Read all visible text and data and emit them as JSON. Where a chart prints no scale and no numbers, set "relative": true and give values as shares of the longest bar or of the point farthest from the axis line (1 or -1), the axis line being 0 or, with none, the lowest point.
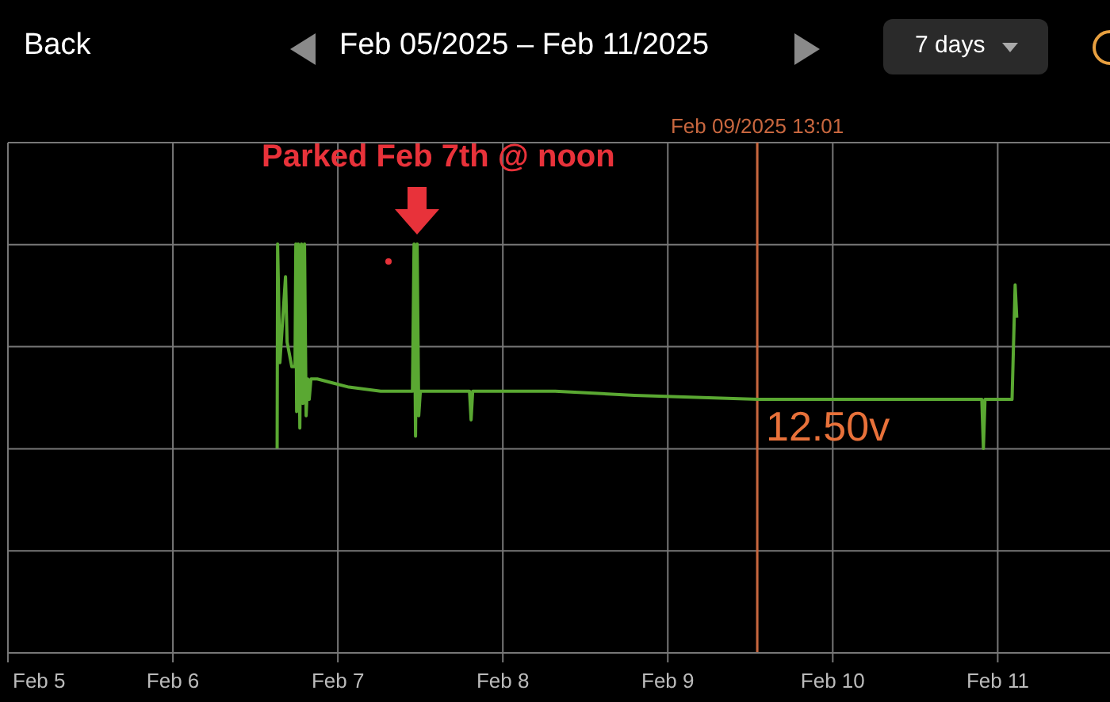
{
  "chart_data": {
    "type": "line",
    "relative": true,
    "title": "Feb 05/2025 – Feb 11/2025",
    "annotations": [
      "Back",
      "7 days",
      "Parked Feb 7th @ noon",
      "12.50v"
    ],
    "xlim": [
      "2025-02-05T00:00",
      "2025-02-11T16:20"
    ],
    "xticks": [
      {
        "value": "2025-02-05",
        "label": "Feb 5"
      },
      {
        "value": "2025-02-06",
        "label": "Feb 6"
      },
      {
        "value": "2025-02-07",
        "label": "Feb 7"
      },
      {
        "value": "2025-02-08",
        "label": "Feb 8"
      },
      {
        "value": "2025-02-09",
        "label": "Feb 9"
      },
      {
        "value": "2025-02-10",
        "label": "Feb 10"
      },
      {
        "value": "2025-02-11",
        "label": "Feb 11"
      }
    ],
    "grid": true,
    "marker": "none",
    "line_style": "solid",
    "ref_lines": [
      {
        "axis": "x",
        "value": "2025-02-09T13:01",
        "label": "Feb 09/2025 13:01",
        "color": "#c8673f"
      }
    ],
    "series": [
      {
        "color": "#5aa832",
        "x": [
          "2025-02-06T15:10",
          "2025-02-06T15:14",
          "2025-02-06T15:34",
          "2025-02-06T16:23",
          "2025-02-06T16:37",
          "2025-02-06T17:18",
          "2025-02-06T17:46",
          "2025-02-06T17:53",
          "2025-02-06T18:00",
          "2025-02-06T18:14",
          "2025-02-06T18:28",
          "2025-02-06T18:42",
          "2025-02-06T18:55",
          "2025-02-06T19:09",
          "2025-02-06T19:23",
          "2025-02-06T19:37",
          "2025-02-06T19:50",
          "2025-02-06T20:05",
          "2025-02-06T21:00",
          "2025-02-06T23:19",
          "2025-02-07T01:36",
          "2025-02-07T06:14",
          "2025-02-07T09:42",
          "2025-02-07T10:51",
          "2025-02-07T11:05",
          "2025-02-07T11:18",
          "2025-02-07T11:32",
          "2025-02-07T11:46",
          "2025-02-07T12:00",
          "2025-02-07T15:27",
          "2025-02-07T19:09",
          "2025-02-07T19:23",
          "2025-02-07T19:37",
          "2025-02-08T07:37",
          "2025-02-08T19:09",
          "2025-02-09T13:09",
          "2025-02-10T17:18",
          "2025-02-10T21:41",
          "2025-02-10T21:55",
          "2025-02-10T22:09",
          "2025-02-11T01:51",
          "2025-02-11T02:05",
          "2025-02-11T02:32",
          "2025-02-11T02:46"
        ],
        "values": [
          0.5,
          1.0,
          0.71,
          0.92,
          0.76,
          0.7,
          0.7,
          1.0,
          0.59,
          1.0,
          0.55,
          1.0,
          0.61,
          1.0,
          0.58,
          0.67,
          0.62,
          0.67,
          0.67,
          0.66,
          0.65,
          0.64,
          0.64,
          0.64,
          1.0,
          0.53,
          1.0,
          0.58,
          0.64,
          0.64,
          0.64,
          0.57,
          0.64,
          0.64,
          0.63,
          0.62,
          0.62,
          0.62,
          0.5,
          0.62,
          0.62,
          0.62,
          0.9,
          0.82
        ]
      }
    ]
  }
}
